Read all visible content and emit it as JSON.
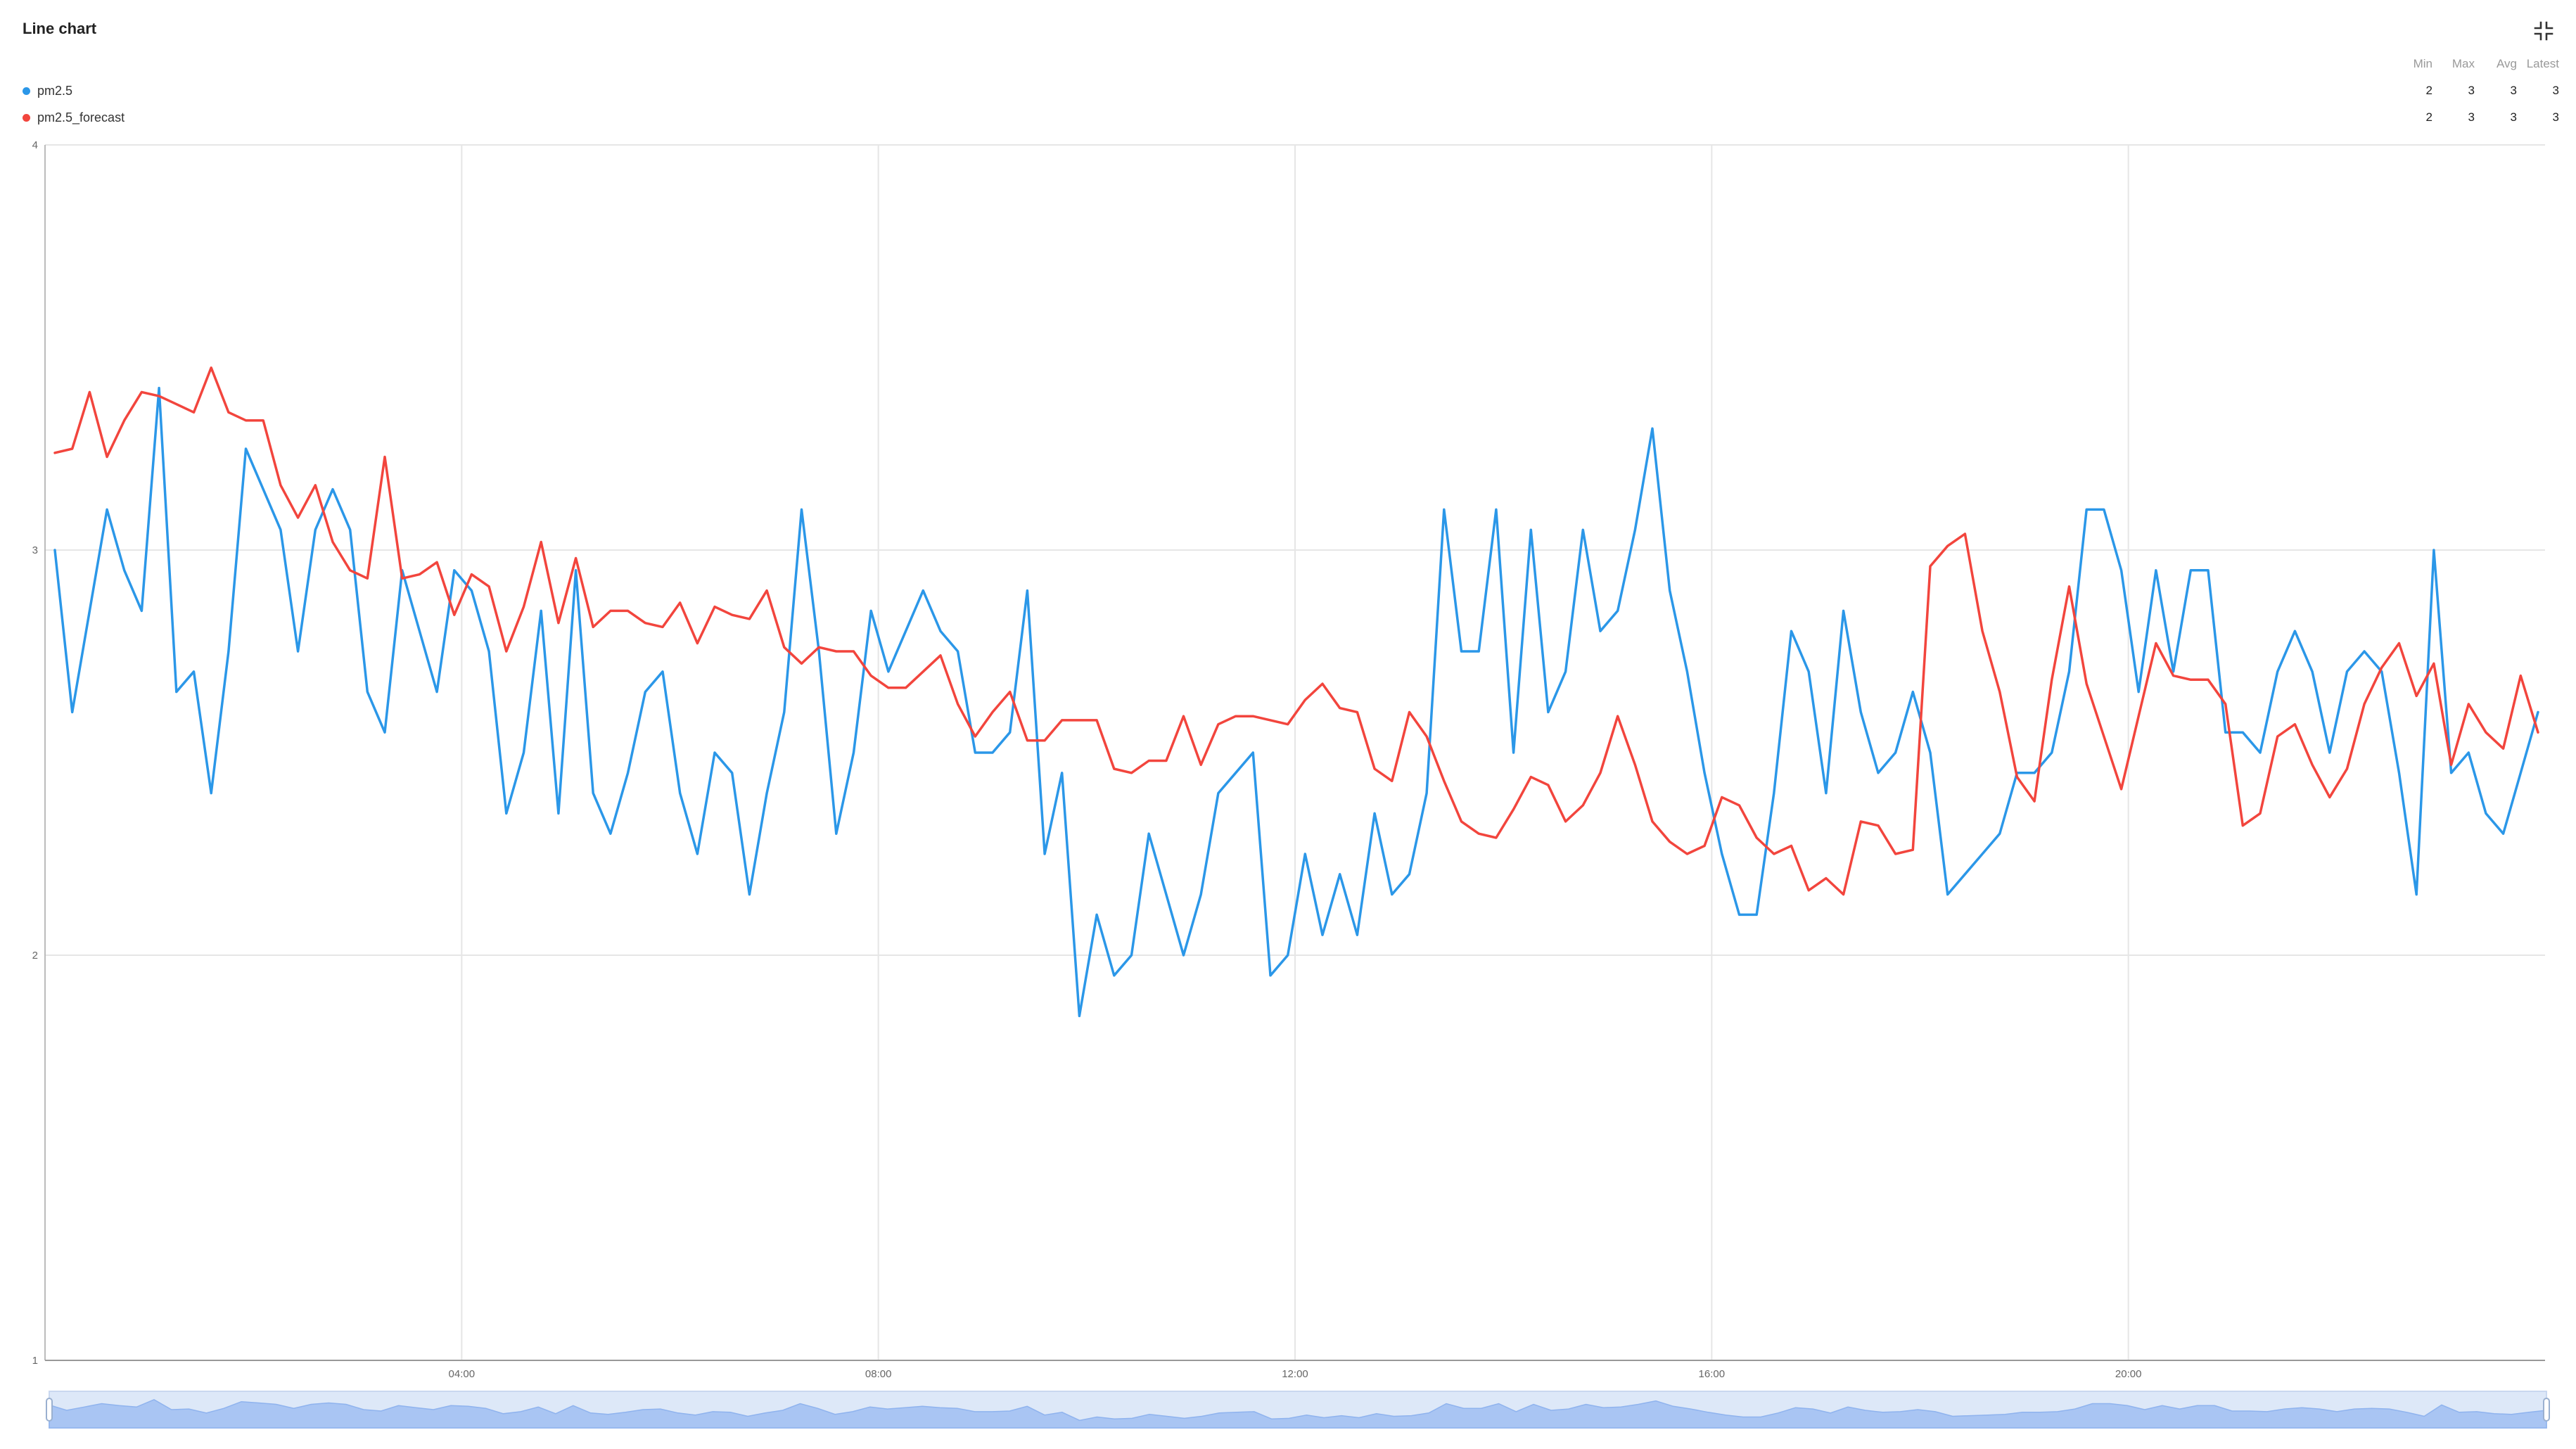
{
  "header": {
    "title": "Line chart",
    "fullscreen_icon": "fullscreen-exit-icon"
  },
  "legend": {
    "stat_headers": [
      "Min",
      "Max",
      "Avg",
      "Latest"
    ],
    "items": [
      {
        "name": "pm2.5",
        "color": "#2b97e8",
        "stats": [
          "2",
          "3",
          "3",
          "3"
        ]
      },
      {
        "name": "pm2.5_forecast",
        "color": "#f2453d",
        "stats": [
          "2",
          "3",
          "3",
          "3"
        ]
      }
    ]
  },
  "chart_data": {
    "type": "line",
    "title": "Line chart",
    "xlabel": "",
    "ylabel": "",
    "ylim": [
      1,
      4
    ],
    "yticks": [
      "1",
      "2",
      "3",
      "4"
    ],
    "x_range_hours": [
      0,
      24
    ],
    "xticks": [
      {
        "label": "04:00",
        "hour": 4
      },
      {
        "label": "08:00",
        "hour": 8
      },
      {
        "label": "12:00",
        "hour": 12
      },
      {
        "label": "16:00",
        "hour": 16
      },
      {
        "label": "20:00",
        "hour": 20
      }
    ],
    "grid": true,
    "legend_position": "top-left",
    "series": [
      {
        "name": "pm2.5",
        "color": "#2b97e8",
        "values": [
          3.0,
          2.6,
          2.85,
          3.1,
          2.95,
          2.85,
          3.4,
          2.65,
          2.7,
          2.4,
          2.75,
          3.25,
          3.15,
          3.05,
          2.75,
          3.05,
          3.15,
          3.05,
          2.65,
          2.55,
          2.95,
          2.8,
          2.65,
          2.95,
          2.9,
          2.75,
          2.35,
          2.5,
          2.85,
          2.35,
          2.95,
          2.4,
          2.3,
          2.45,
          2.65,
          2.7,
          2.4,
          2.25,
          2.5,
          2.45,
          2.15,
          2.4,
          2.6,
          3.1,
          2.75,
          2.3,
          2.5,
          2.85,
          2.7,
          2.8,
          2.9,
          2.8,
          2.75,
          2.5,
          2.5,
          2.55,
          2.9,
          2.25,
          2.45,
          1.85,
          2.1,
          1.95,
          2.0,
          2.3,
          2.15,
          2.0,
          2.15,
          2.4,
          2.45,
          2.5,
          1.95,
          2.0,
          2.25,
          2.05,
          2.2,
          2.05,
          2.35,
          2.15,
          2.2,
          2.4,
          3.1,
          2.75,
          2.75,
          3.1,
          2.5,
          3.05,
          2.6,
          2.7,
          3.05,
          2.8,
          2.85,
          3.05,
          3.3,
          2.9,
          2.7,
          2.45,
          2.25,
          2.1,
          2.1,
          2.4,
          2.8,
          2.7,
          2.4,
          2.85,
          2.6,
          2.45,
          2.5,
          2.65,
          2.5,
          2.15,
          2.2,
          2.25,
          2.3,
          2.45,
          2.45,
          2.5,
          2.7,
          3.1,
          3.1,
          2.95,
          2.65,
          2.95,
          2.7,
          2.95,
          2.95,
          2.55,
          2.55,
          2.5,
          2.7,
          2.8,
          2.7,
          2.5,
          2.7,
          2.75,
          2.7,
          2.45,
          2.15,
          3.0,
          2.45,
          2.5,
          2.35,
          2.3,
          2.45,
          2.6
        ]
      },
      {
        "name": "pm2.5_forecast",
        "color": "#f2453d",
        "values": [
          3.24,
          3.25,
          3.39,
          3.23,
          3.32,
          3.39,
          3.38,
          3.36,
          3.34,
          3.45,
          3.34,
          3.32,
          3.32,
          3.16,
          3.08,
          3.16,
          3.02,
          2.95,
          2.93,
          3.23,
          2.93,
          2.94,
          2.97,
          2.84,
          2.94,
          2.91,
          2.75,
          2.86,
          3.02,
          2.82,
          2.98,
          2.81,
          2.85,
          2.85,
          2.82,
          2.81,
          2.87,
          2.77,
          2.86,
          2.84,
          2.83,
          2.9,
          2.76,
          2.72,
          2.76,
          2.75,
          2.75,
          2.69,
          2.66,
          2.66,
          2.7,
          2.74,
          2.62,
          2.54,
          2.6,
          2.65,
          2.53,
          2.53,
          2.58,
          2.58,
          2.58,
          2.46,
          2.45,
          2.48,
          2.48,
          2.59,
          2.47,
          2.57,
          2.59,
          2.59,
          2.58,
          2.57,
          2.63,
          2.67,
          2.61,
          2.6,
          2.46,
          2.43,
          2.6,
          2.54,
          2.43,
          2.33,
          2.3,
          2.29,
          2.36,
          2.44,
          2.42,
          2.33,
          2.37,
          2.45,
          2.59,
          2.47,
          2.33,
          2.28,
          2.25,
          2.27,
          2.39,
          2.37,
          2.29,
          2.25,
          2.27,
          2.16,
          2.19,
          2.15,
          2.33,
          2.32,
          2.25,
          2.26,
          2.96,
          3.01,
          3.04,
          2.8,
          2.65,
          2.44,
          2.38,
          2.68,
          2.91,
          2.67,
          2.54,
          2.41,
          2.59,
          2.77,
          2.69,
          2.68,
          2.68,
          2.62,
          2.32,
          2.35,
          2.54,
          2.57,
          2.47,
          2.39,
          2.46,
          2.62,
          2.71,
          2.77,
          2.64,
          2.72,
          2.47,
          2.62,
          2.55,
          2.51,
          2.69,
          2.55
        ]
      }
    ]
  }
}
